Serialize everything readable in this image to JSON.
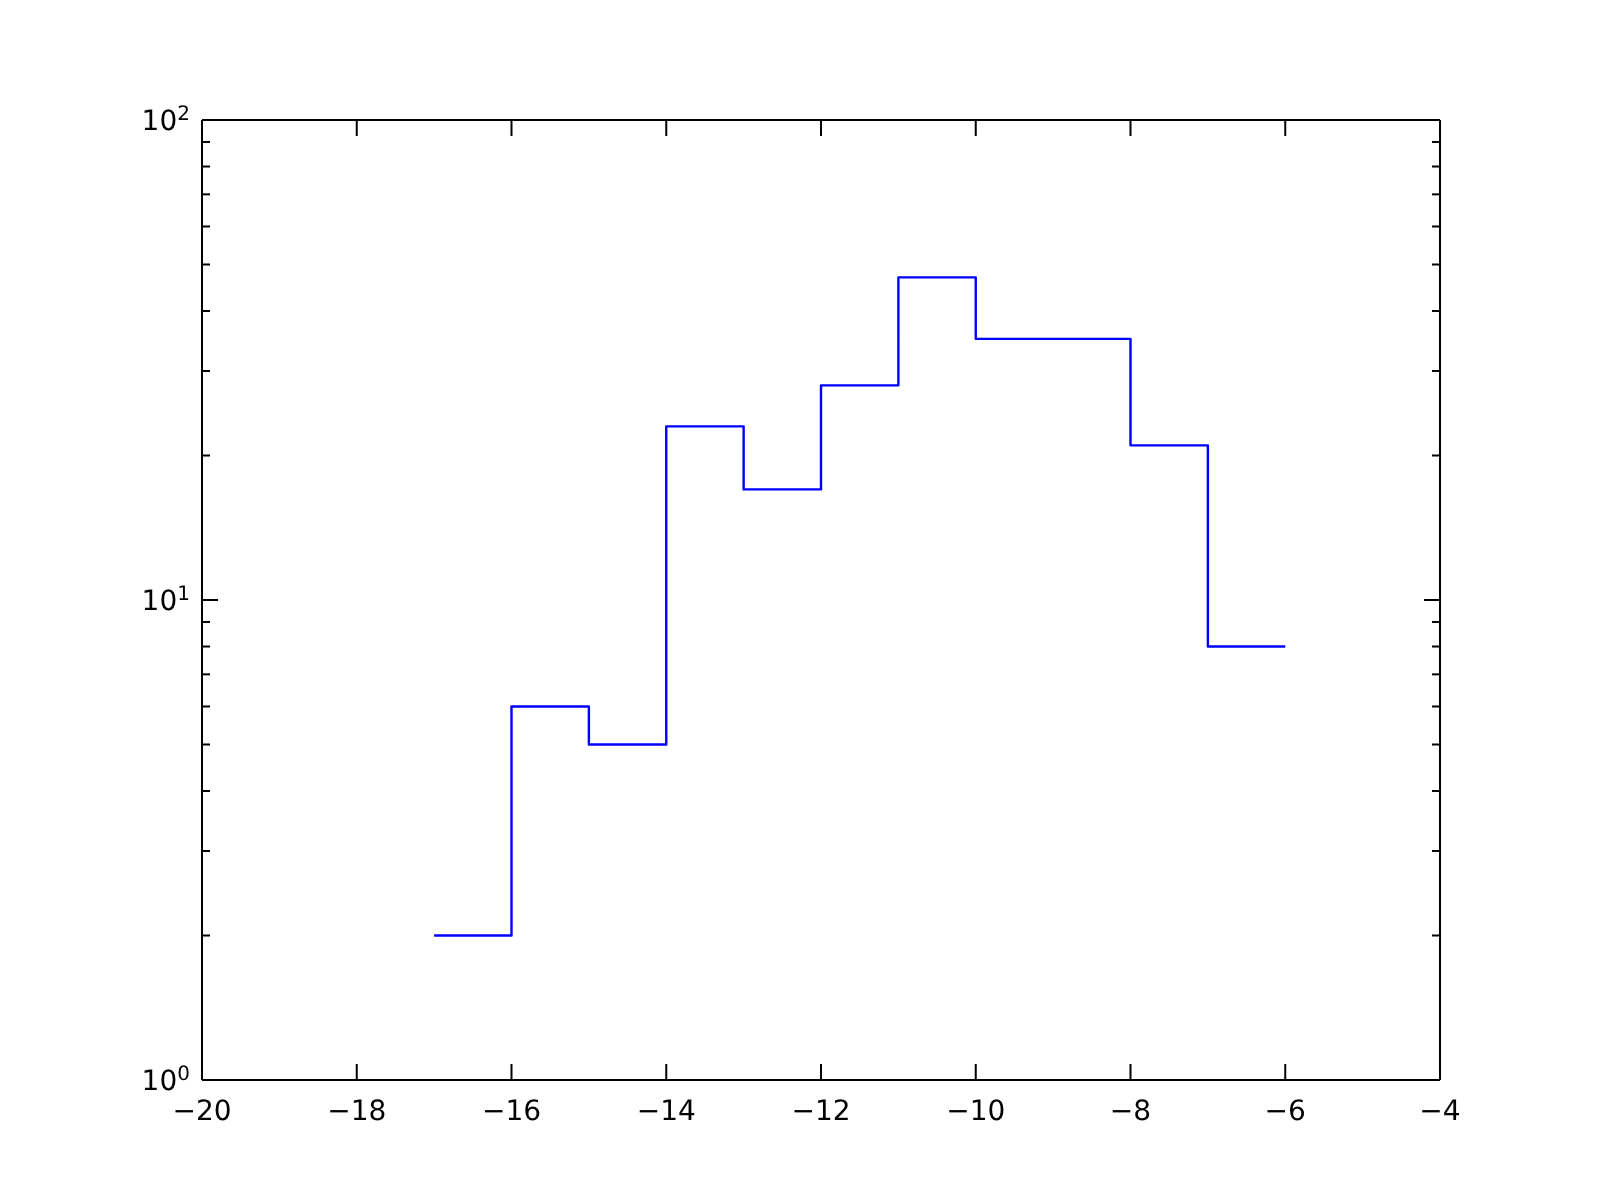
{
  "chart_data": {
    "type": "histogram",
    "bins": [
      -17,
      -16,
      -15,
      -14,
      -13,
      -12,
      -11,
      -10,
      -9,
      -8,
      -7,
      -6
    ],
    "values": [
      2,
      6,
      5,
      23,
      17,
      28,
      47,
      35,
      35,
      21,
      8
    ],
    "color": "#0000ff",
    "log": "y",
    "xlim": [
      -20,
      -4
    ],
    "ylim": [
      1,
      100
    ],
    "xticks": [
      {
        "value": -20,
        "label": "−20"
      },
      {
        "value": -18,
        "label": "−18"
      },
      {
        "value": -16,
        "label": "−16"
      },
      {
        "value": -14,
        "label": "−14"
      },
      {
        "value": -12,
        "label": "−12"
      },
      {
        "value": -10,
        "label": "−10"
      },
      {
        "value": -8,
        "label": "−8"
      },
      {
        "value": -6,
        "label": "−6"
      },
      {
        "value": -4,
        "label": "−4"
      }
    ],
    "yticks": [
      {
        "value": 1,
        "label": "10$^{0}$"
      },
      {
        "value": 2,
        "label": null
      },
      {
        "value": 3,
        "label": null
      },
      {
        "value": 4,
        "label": null
      },
      {
        "value": 5,
        "label": null
      },
      {
        "value": 6,
        "label": null
      },
      {
        "value": 7,
        "label": null
      },
      {
        "value": 8,
        "label": null
      },
      {
        "value": 9,
        "label": null
      },
      {
        "value": 10,
        "label": "10$^{1}$"
      },
      {
        "value": 20,
        "label": null
      },
      {
        "value": 30,
        "label": null
      },
      {
        "value": 40,
        "label": null
      },
      {
        "value": 50,
        "label": null
      },
      {
        "value": 60,
        "label": null
      },
      {
        "value": 70,
        "label": null
      },
      {
        "value": 80,
        "label": null
      },
      {
        "value": 90,
        "label": null
      },
      {
        "value": 100,
        "label": "10$^{2}$"
      }
    ]
  }
}
